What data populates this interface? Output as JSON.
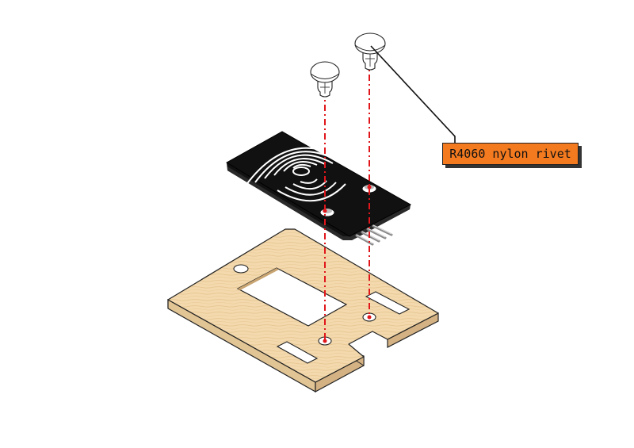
{
  "callout": {
    "label": "R4060 nylon rivet",
    "color": "#f47a1f"
  },
  "colors": {
    "wood": "#f3d9ad",
    "board": "#111111",
    "guide_line": "#e0161b"
  }
}
